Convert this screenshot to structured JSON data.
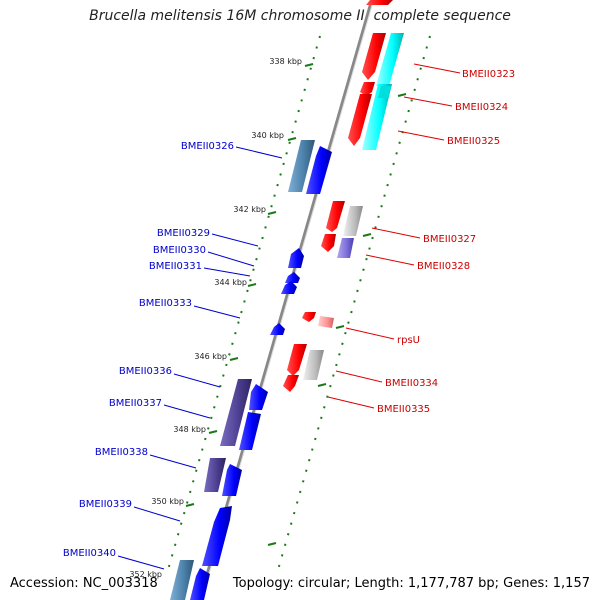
{
  "title": "Brucella melitensis 16M chromosome II, complete sequence",
  "accession": "Accession: NC_003318",
  "topology": "Topology: circular; Length: 1,177,787 bp; Genes: 1,157",
  "colors": {
    "forward": "#ff0000",
    "reverse": "#0000ff",
    "cyan": "#00ffff",
    "grey": "#bbbbbb",
    "slate": "#4a7fa7",
    "indigo": "#4b3d8f",
    "scale": "#1a7a1a",
    "backbone": "#888888"
  },
  "kbp_ticks": [
    {
      "label": "338 kbp"
    },
    {
      "label": "340 kbp"
    },
    {
      "label": "342 kbp"
    },
    {
      "label": "344 kbp"
    },
    {
      "label": "346 kbp"
    },
    {
      "label": "348 kbp"
    },
    {
      "label": "350 kbp"
    },
    {
      "label": "352 kbp"
    }
  ],
  "right_labels": [
    {
      "name": "BMEII0323"
    },
    {
      "name": "BMEII0324"
    },
    {
      "name": "BMEII0325"
    },
    {
      "name": "BMEII0327"
    },
    {
      "name": "BMEII0328"
    },
    {
      "name": "rpsU"
    },
    {
      "name": "BMEII0334"
    },
    {
      "name": "BMEII0335"
    }
  ],
  "left_labels": [
    {
      "name": "BMEII0326"
    },
    {
      "name": "BMEII0329"
    },
    {
      "name": "BMEII0330"
    },
    {
      "name": "BMEII0331"
    },
    {
      "name": "BMEII0333"
    },
    {
      "name": "BMEII0336"
    },
    {
      "name": "BMEII0337"
    },
    {
      "name": "BMEII0338"
    },
    {
      "name": "BMEII0339"
    },
    {
      "name": "BMEII0340"
    }
  ]
}
